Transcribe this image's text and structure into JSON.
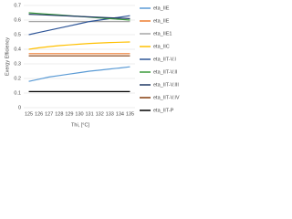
{
  "chart_data": {
    "type": "line",
    "y_label": "Exergy Efficiency",
    "x_label": "Thi, [°C]",
    "categories": [
      "125",
      "126",
      "127",
      "128",
      "129",
      "130",
      "131",
      "132",
      "133",
      "134",
      "135"
    ],
    "ylim": [
      0,
      0.7
    ],
    "yticks": [
      0,
      0.1,
      0.2,
      0.3,
      0.4,
      0.5,
      0.6,
      0.7
    ],
    "grid": true,
    "series": [
      {
        "name": "eta_IIE",
        "color": "#5b9bd5",
        "values": [
          0.18,
          0.195,
          0.21,
          0.22,
          0.23,
          0.24,
          0.25,
          0.257,
          0.265,
          0.272,
          0.28
        ]
      },
      {
        "name": "eta_IIE",
        "color": "#ed7d31",
        "values": [
          0.37,
          0.37,
          0.37,
          0.37,
          0.37,
          0.37,
          0.37,
          0.37,
          0.37,
          0.37,
          0.37
        ]
      },
      {
        "name": "eta_IIE1",
        "color": "#a5a5a5",
        "values": [
          0.59,
          0.59,
          0.59,
          0.59,
          0.59,
          0.59,
          0.59,
          0.59,
          0.59,
          0.59,
          0.59
        ]
      },
      {
        "name": "eta_IIC",
        "color": "#ffc000",
        "values": [
          0.4,
          0.41,
          0.418,
          0.425,
          0.43,
          0.435,
          0.44,
          0.443,
          0.446,
          0.448,
          0.45
        ]
      },
      {
        "name": "eta_IIT-V.I",
        "color": "#2e5597",
        "values": [
          0.5,
          0.515,
          0.53,
          0.545,
          0.56,
          0.575,
          0.59,
          0.6,
          0.61,
          0.62,
          0.63
        ]
      },
      {
        "name": "eta_IIT-V.II",
        "color": "#3a9b3a",
        "values": [
          0.65,
          0.645,
          0.64,
          0.635,
          0.63,
          0.625,
          0.62,
          0.615,
          0.61,
          0.605,
          0.6
        ]
      },
      {
        "name": "eta_IIT-V.III",
        "color": "#1f3864",
        "values": [
          0.64,
          0.637,
          0.634,
          0.631,
          0.628,
          0.625,
          0.622,
          0.619,
          0.616,
          0.613,
          0.61
        ]
      },
      {
        "name": "eta_IIT-V.IV",
        "color": "#843c0c",
        "values": [
          0.355,
          0.355,
          0.355,
          0.355,
          0.355,
          0.355,
          0.355,
          0.355,
          0.355,
          0.355,
          0.355
        ]
      },
      {
        "name": "eta_IIT-P",
        "color": "#000000",
        "values": [
          0.11,
          0.11,
          0.11,
          0.11,
          0.11,
          0.11,
          0.11,
          0.11,
          0.11,
          0.11,
          0.11
        ]
      }
    ]
  }
}
